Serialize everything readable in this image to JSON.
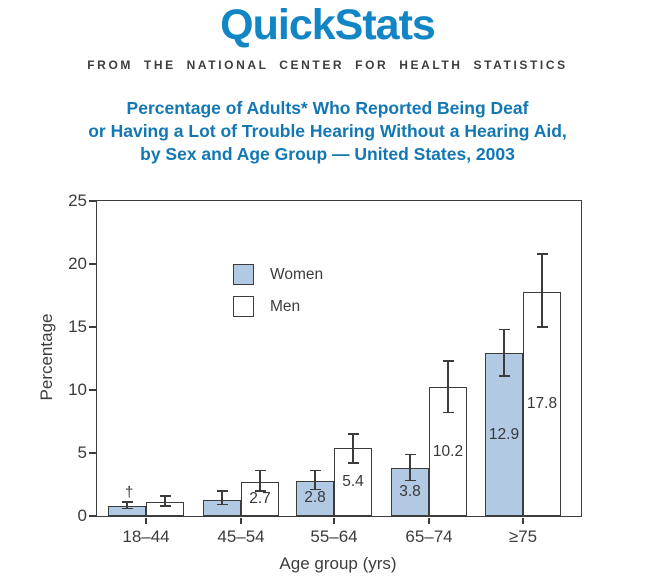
{
  "header": {
    "wordmark": "QuickStats",
    "tagline": "FROM THE NATIONAL CENTER FOR HEALTH STATISTICS",
    "title_line1": "Percentage of Adults* Who Reported Being Deaf",
    "title_line2": "or Having a Lot of Trouble Hearing Without a Hearing Aid,",
    "title_line3": "by Sex and Age Group — United States, 2003"
  },
  "colors": {
    "wordmark_blue": "#1285c4",
    "title_blue": "#1377b4",
    "axis_gray": "#3c3c3c",
    "women_fill": "#b1c9e3",
    "men_fill": "#ffffff"
  },
  "chart_data": {
    "type": "bar",
    "title": "Percentage of Adults* Who Reported Being Deaf or Having a Lot of Trouble Hearing Without a Hearing Aid, by Sex and Age Group — United States, 2003",
    "xlabel": "Age group (yrs)",
    "ylabel": "Percentage",
    "ylim": [
      0,
      25
    ],
    "yticks": [
      0,
      5,
      10,
      15,
      20,
      25
    ],
    "grid": false,
    "legend_position": "upper-left-inside",
    "categories": [
      "18–44",
      "45–54",
      "55–64",
      "65–74",
      "≥75"
    ],
    "series": [
      {
        "name": "Women",
        "fill": "#b1c9e3",
        "values": [
          0.8,
          1.3,
          2.8,
          3.8,
          12.9
        ],
        "labels": [
          null,
          null,
          "2.8",
          "3.8",
          "12.9"
        ],
        "ci_low": [
          0.6,
          0.9,
          2.1,
          2.8,
          11.1
        ],
        "ci_high": [
          1.1,
          2.0,
          3.6,
          4.9,
          14.8
        ],
        "flags": [
          "†",
          null,
          null,
          null,
          null
        ]
      },
      {
        "name": "Men",
        "fill": "#ffffff",
        "values": [
          1.1,
          2.7,
          5.4,
          10.2,
          17.8
        ],
        "labels": [
          null,
          "2.7",
          "5.4",
          "10.2",
          "17.8"
        ],
        "ci_low": [
          0.8,
          2.0,
          4.2,
          8.2,
          15.0
        ],
        "ci_high": [
          1.6,
          3.6,
          6.5,
          12.3,
          20.8
        ],
        "flags": [
          null,
          null,
          null,
          null,
          null
        ]
      }
    ],
    "annotations": {
      "unreliable_estimate_flag": "†"
    }
  }
}
